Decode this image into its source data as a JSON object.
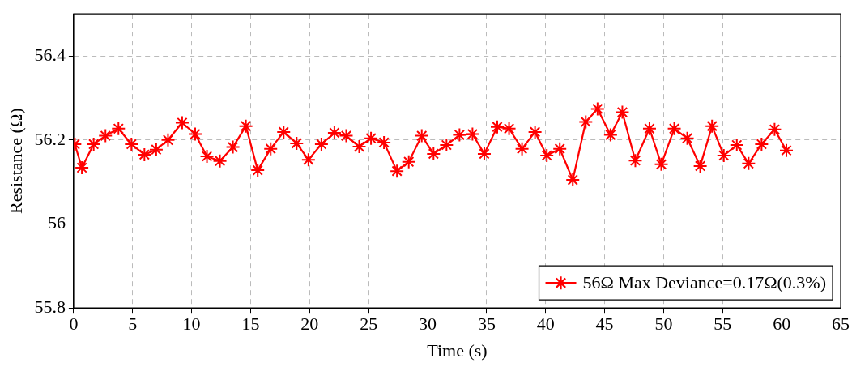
{
  "chart_data": {
    "type": "line",
    "xlabel": "Time (s)",
    "ylabel": "Resistance (Ω)",
    "xlim": [
      0,
      65
    ],
    "xticks": [
      0,
      5,
      10,
      15,
      20,
      25,
      30,
      35,
      40,
      45,
      50,
      55,
      60,
      65
    ],
    "ylim": [
      55.8,
      56.5
    ],
    "yticks": [
      55.8,
      56,
      56.2,
      56.4
    ],
    "grid": true,
    "legend": "bottom right",
    "marker": "cross",
    "line_style": "solid",
    "series": [
      {
        "name": "56Ω Max Deviance=0.17Ω(0.3%)",
        "color": "#ff0000",
        "x": [
          0.1,
          0.7,
          1.7,
          2.7,
          3.8,
          4.9,
          6.0,
          7.0,
          8.0,
          9.2,
          10.3,
          11.3,
          12.4,
          13.5,
          14.6,
          15.6,
          16.7,
          17.8,
          18.9,
          19.9,
          21.0,
          22.1,
          23.1,
          24.2,
          25.2,
          26.3,
          27.4,
          28.4,
          29.5,
          30.5,
          31.6,
          32.7,
          33.8,
          34.8,
          35.9,
          36.9,
          38.0,
          39.1,
          40.1,
          41.2,
          42.3,
          43.4,
          44.4,
          45.5,
          46.5,
          47.6,
          48.8,
          49.8,
          50.9,
          52.0,
          53.1,
          54.1,
          55.1,
          56.2,
          57.2,
          58.3,
          59.4,
          60.4
        ],
        "values": [
          56.19,
          56.134,
          56.19,
          56.21,
          56.227,
          56.19,
          56.165,
          56.177,
          56.2,
          56.241,
          56.214,
          56.161,
          56.15,
          56.183,
          56.233,
          56.128,
          56.179,
          56.219,
          56.192,
          56.153,
          56.19,
          56.217,
          56.21,
          56.184,
          56.204,
          56.194,
          56.126,
          56.148,
          56.21,
          56.167,
          56.188,
          56.212,
          56.214,
          56.167,
          56.231,
          56.227,
          56.179,
          56.219,
          56.163,
          56.179,
          56.105,
          56.243,
          56.274,
          56.212,
          56.266,
          56.151,
          56.227,
          56.142,
          56.227,
          56.204,
          56.138,
          56.233,
          56.163,
          56.188,
          56.144,
          56.19,
          56.225,
          56.175
        ]
      }
    ]
  }
}
